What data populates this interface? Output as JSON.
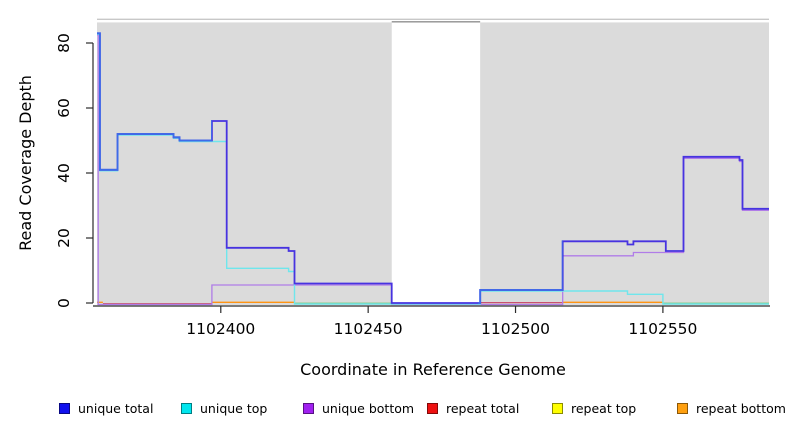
{
  "figure": {
    "xlabel": "Coordinate in Reference Genome",
    "ylabel": "Read Coverage Depth"
  },
  "legend": {
    "items": [
      {
        "label": "unique total",
        "color": "#1111EE"
      },
      {
        "label": "unique top",
        "color": "#00E6EE"
      },
      {
        "label": "unique bottom",
        "color": "#A020F0"
      },
      {
        "label": "repeat total",
        "color": "#EE1111"
      },
      {
        "label": "repeat top",
        "color": "#FFFF00"
      },
      {
        "label": "repeat bottom",
        "color": "#FFA010"
      }
    ]
  },
  "chart_data": {
    "type": "line",
    "title": "",
    "xlabel": "Coordinate in Reference Genome",
    "ylabel": "Read Coverage Depth",
    "x_ticks": [
      1102400,
      1102450,
      1102500,
      1102550
    ],
    "y_ticks": [
      0,
      20,
      40,
      60,
      80
    ],
    "xlim": [
      1102358,
      1102586
    ],
    "ylim": [
      0,
      87
    ],
    "grid": false,
    "legend_position": "bottom",
    "plot_background": "#DBDBDB",
    "no_data_gap": {
      "from": 1102458,
      "to": 1102488
    },
    "series": [
      {
        "name": "unique bottom",
        "color": "#B07CE8",
        "width": 1.3,
        "dy": 1.5,
        "points": [
          [
            1102358,
            83
          ],
          [
            1102358.4,
            0
          ],
          [
            1102397,
            6
          ],
          [
            1102458,
            0
          ],
          [
            1102488,
            0
          ],
          [
            1102516,
            15
          ],
          [
            1102540,
            16
          ],
          [
            1102551,
            16
          ],
          [
            1102557,
            45
          ],
          [
            1102576,
            44
          ],
          [
            1102577,
            29
          ],
          [
            1102586,
            29
          ]
        ]
      },
      {
        "name": "unique top",
        "color": "#6FE6EC",
        "width": 1.4,
        "dy": 1,
        "points": [
          [
            1102358,
            83
          ],
          [
            1102359,
            41
          ],
          [
            1102365,
            52
          ],
          [
            1102384,
            51
          ],
          [
            1102386,
            50
          ],
          [
            1102402,
            11
          ],
          [
            1102423,
            10
          ],
          [
            1102425,
            0
          ],
          [
            1102488,
            4
          ],
          [
            1102538,
            3
          ],
          [
            1102550,
            0
          ],
          [
            1102586,
            0
          ]
        ]
      },
      {
        "name": "unique total",
        "color": "#4733E0",
        "bright_color": "#3E6BE8",
        "bright_ranges": [
          [
            1102358,
            1102397
          ],
          [
            1102488,
            1102516
          ]
        ],
        "width": 1.8,
        "dy": 0,
        "points": [
          [
            1102358,
            83
          ],
          [
            1102359,
            41
          ],
          [
            1102365,
            52
          ],
          [
            1102384,
            51
          ],
          [
            1102386,
            50
          ],
          [
            1102397,
            56
          ],
          [
            1102402,
            17
          ],
          [
            1102423,
            16
          ],
          [
            1102425,
            6
          ],
          [
            1102458,
            0
          ],
          [
            1102488,
            4
          ],
          [
            1102516,
            19
          ],
          [
            1102538,
            18
          ],
          [
            1102540,
            19
          ],
          [
            1102551,
            16
          ],
          [
            1102557,
            45
          ],
          [
            1102576,
            44
          ],
          [
            1102577,
            29
          ],
          [
            1102586,
            29
          ]
        ]
      }
    ],
    "zero_line_segments": [
      {
        "series": "repeat bottom",
        "from": 1102358,
        "to": 1102360,
        "color": "#FF9414",
        "dy": -0.7
      },
      {
        "series": "repeat total",
        "from": 1102360,
        "to": 1102397,
        "color": "#C9516E",
        "dy": 0.8
      },
      {
        "series": "repeat bottom",
        "from": 1102397,
        "to": 1102425,
        "color": "#FF9414",
        "dy": -0.7
      },
      {
        "series": "baseline",
        "from": 1102425,
        "to": 1102458,
        "color": "#74C976",
        "dy": 0.3
      },
      {
        "series": "repeat total",
        "from": 1102488,
        "to": 1102516,
        "color": "#C9516E",
        "dy": -0.4
      },
      {
        "series": "repeat bottom",
        "from": 1102516,
        "to": 1102550,
        "color": "#FF9414",
        "dy": -0.7
      },
      {
        "series": "baseline",
        "from": 1102550,
        "to": 1102586,
        "color": "#74C976",
        "dy": 0.3
      }
    ],
    "top_border": {
      "light_color": "#C8C8C8",
      "dark_color": "#8F8F8F"
    }
  }
}
